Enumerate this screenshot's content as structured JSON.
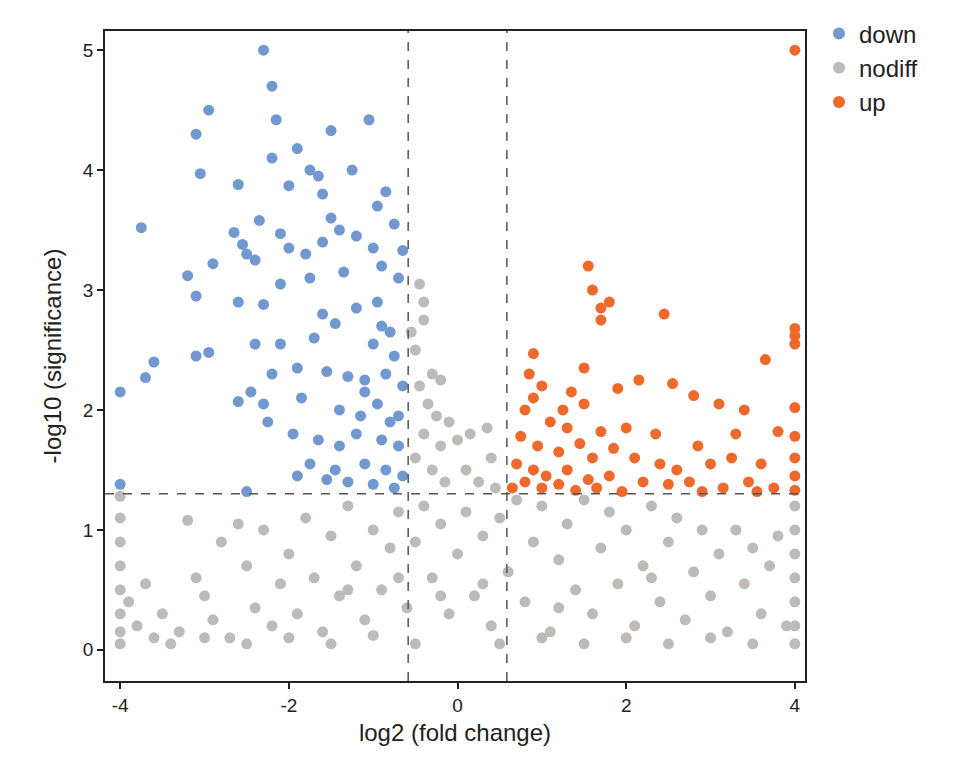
{
  "chart_data": {
    "type": "scatter",
    "x_label": "log2 (fold change)",
    "y_label": "-log10 (significance)",
    "xlim": [
      -4.18,
      4.12
    ],
    "xticks": [
      -4,
      -2,
      0,
      2,
      4
    ],
    "ylim": [
      -0.26,
      5.16
    ],
    "yticks": [
      0,
      1,
      2,
      3,
      4,
      5
    ],
    "grid": false,
    "legend": "right",
    "cutoffs": {
      "x": [
        -0.585,
        0.585
      ],
      "y": 1.301
    },
    "series": [
      {
        "name": "down",
        "color": "#7199cf",
        "marker": "circle",
        "x": [
          -2.3,
          -2.2,
          -2.15,
          -1.05,
          -2.95,
          -3.1,
          -1.5,
          -1.9,
          -2.2,
          -3.05,
          -1.75,
          -1.65,
          -1.25,
          -0.85,
          -2.0,
          -1.6,
          -0.95,
          -2.6,
          -3.75,
          -2.35,
          -2.65,
          -2.55,
          -2.5,
          -2.4,
          -2.1,
          -1.5,
          -1.4,
          -1.2,
          -0.75,
          -2.0,
          -1.8,
          -1.6,
          -1.0,
          -0.65,
          -2.9,
          -3.2,
          -3.1,
          -2.6,
          -2.3,
          -2.1,
          -1.75,
          -1.35,
          -0.9,
          -0.7,
          -1.6,
          -1.45,
          -1.2,
          -0.95,
          -0.8,
          -1.7,
          -1.0,
          -0.75,
          -2.1,
          -2.4,
          -3.1,
          -2.95,
          -3.6,
          -3.7,
          -4.0,
          -2.2,
          -1.9,
          -1.55,
          -1.3,
          -1.1,
          -0.85,
          -0.65,
          -2.45,
          -2.3,
          -1.85,
          -1.4,
          -1.15,
          -0.95,
          -0.7,
          -2.6,
          -2.25,
          -1.95,
          -1.65,
          -1.4,
          -1.2,
          -0.9,
          -0.7,
          -1.75,
          -1.9,
          -1.45,
          -1.1,
          -0.85,
          -0.65,
          -1.3,
          -1.0,
          -0.75,
          -2.5,
          -4.0,
          -1.55,
          -0.9,
          -1.1,
          -0.8
        ],
        "values": [
          5.0,
          4.7,
          4.42,
          4.42,
          4.5,
          4.3,
          4.33,
          4.18,
          4.1,
          3.97,
          4.0,
          3.95,
          4.0,
          3.82,
          3.87,
          3.8,
          3.7,
          3.88,
          3.52,
          3.58,
          3.48,
          3.38,
          3.3,
          3.25,
          3.47,
          3.6,
          3.5,
          3.45,
          3.55,
          3.35,
          3.3,
          3.4,
          3.35,
          3.33,
          3.22,
          3.12,
          2.95,
          2.9,
          2.88,
          3.05,
          3.1,
          3.15,
          3.2,
          3.1,
          2.8,
          2.72,
          2.85,
          2.9,
          2.65,
          2.6,
          2.55,
          2.45,
          2.55,
          2.55,
          2.45,
          2.48,
          2.4,
          2.27,
          2.15,
          2.3,
          2.35,
          2.32,
          2.28,
          2.25,
          2.3,
          2.2,
          2.15,
          2.05,
          2.1,
          2.0,
          1.95,
          2.05,
          1.95,
          2.07,
          1.9,
          1.8,
          1.75,
          1.7,
          1.8,
          1.75,
          1.7,
          1.55,
          1.45,
          1.5,
          1.55,
          1.5,
          1.45,
          1.4,
          1.38,
          1.35,
          1.32,
          1.38,
          1.42,
          2.7,
          2.15,
          1.9
        ]
      },
      {
        "name": "nodiff",
        "color": "#bdbab7",
        "marker": "circle",
        "x": [
          -0.45,
          -0.4,
          -0.4,
          -0.5,
          -0.55,
          -0.3,
          -0.2,
          -0.45,
          -0.35,
          -0.25,
          -0.1,
          -0.4,
          -0.2,
          0.0,
          0.15,
          0.35,
          0.4,
          -0.5,
          -0.3,
          0.1,
          0.25,
          -0.15,
          0.45,
          -4.0,
          -4.0,
          -4.0,
          -4.0,
          -4.0,
          -4.0,
          -4.0,
          -4.0,
          -3.9,
          -3.8,
          -3.7,
          -3.6,
          -3.5,
          -3.3,
          -3.2,
          -3.1,
          -3.0,
          -2.9,
          -2.8,
          -2.7,
          -2.6,
          -2.5,
          -2.4,
          -2.3,
          -2.2,
          -2.1,
          -2.0,
          -1.9,
          -1.8,
          -1.7,
          -1.6,
          -1.5,
          -1.4,
          -1.3,
          -1.2,
          -1.1,
          -1.0,
          -0.9,
          -0.8,
          -0.7,
          -0.6,
          -0.5,
          -0.4,
          -0.3,
          -0.2,
          -0.1,
          0.0,
          0.1,
          0.2,
          0.3,
          0.4,
          0.5,
          0.6,
          0.7,
          0.8,
          0.9,
          1.0,
          1.1,
          1.2,
          1.3,
          1.4,
          1.5,
          1.6,
          1.7,
          1.8,
          1.9,
          2.0,
          2.1,
          2.2,
          2.3,
          2.4,
          2.5,
          2.6,
          2.7,
          2.8,
          2.9,
          3.0,
          3.1,
          3.2,
          3.3,
          3.4,
          3.5,
          3.6,
          3.7,
          3.8,
          3.9,
          4.0,
          4.0,
          4.0,
          4.0,
          4.0,
          4.0,
          4.0,
          -3.4,
          -2.5,
          -1.5,
          -0.5,
          0.5,
          1.5,
          2.5,
          3.5,
          -1.0,
          1.0,
          -2.0,
          2.0,
          3.0,
          -3.0,
          -0.7,
          0.3,
          1.2,
          2.3,
          -1.3,
          -0.2
        ],
        "values": [
          3.05,
          2.9,
          2.75,
          2.5,
          2.65,
          2.3,
          2.25,
          2.2,
          2.05,
          1.95,
          1.9,
          1.8,
          1.7,
          1.75,
          1.8,
          1.85,
          1.6,
          1.6,
          1.5,
          1.5,
          1.4,
          1.4,
          1.35,
          1.28,
          1.1,
          0.9,
          0.7,
          0.5,
          0.3,
          0.15,
          0.05,
          0.4,
          0.2,
          0.55,
          0.1,
          0.3,
          0.15,
          1.08,
          0.6,
          0.45,
          0.25,
          0.9,
          0.1,
          1.05,
          0.7,
          0.35,
          1.0,
          0.2,
          0.55,
          0.8,
          0.3,
          1.1,
          0.6,
          0.15,
          0.95,
          0.45,
          1.2,
          0.7,
          0.25,
          1.0,
          0.5,
          0.85,
          1.15,
          0.35,
          0.9,
          1.2,
          0.6,
          1.05,
          0.3,
          0.8,
          1.15,
          0.45,
          0.95,
          0.2,
          1.1,
          0.65,
          1.25,
          0.4,
          0.9,
          1.2,
          0.15,
          0.75,
          1.05,
          0.5,
          1.25,
          0.3,
          0.85,
          1.15,
          0.55,
          1.0,
          0.2,
          0.7,
          1.2,
          0.4,
          0.9,
          1.1,
          0.25,
          0.65,
          1.0,
          0.45,
          0.8,
          0.15,
          1.0,
          0.55,
          0.85,
          0.3,
          0.7,
          0.95,
          0.2,
          1.2,
          1.0,
          0.8,
          0.6,
          0.4,
          0.2,
          0.05,
          0.05,
          0.05,
          0.05,
          0.05,
          0.05,
          0.05,
          0.05,
          0.05,
          0.12,
          0.1,
          0.1,
          0.1,
          0.1,
          0.1,
          0.6,
          0.55,
          0.35,
          0.6,
          0.5,
          0.45
        ]
      },
      {
        "name": "up",
        "color": "#ee6a2c",
        "marker": "circle",
        "x": [
          4.0,
          1.55,
          1.6,
          1.7,
          1.8,
          1.7,
          2.45,
          4.0,
          4.0,
          4.0,
          3.65,
          0.9,
          0.85,
          1.5,
          2.15,
          1.9,
          2.55,
          1.35,
          1.0,
          0.9,
          1.25,
          1.5,
          2.8,
          3.1,
          3.4,
          4.0,
          0.8,
          1.1,
          1.3,
          1.7,
          2.0,
          2.35,
          2.85,
          3.3,
          3.8,
          4.0,
          0.75,
          0.95,
          1.2,
          1.45,
          1.6,
          1.85,
          2.1,
          2.4,
          2.6,
          3.0,
          3.25,
          3.6,
          4.0,
          0.7,
          0.9,
          1.05,
          1.3,
          1.55,
          1.8,
          2.2,
          2.5,
          2.75,
          3.15,
          3.45,
          3.75,
          4.0,
          0.65,
          0.8,
          1.0,
          1.2,
          1.4,
          1.65,
          1.95,
          2.9,
          3.55,
          4.0
        ],
        "values": [
          5.0,
          3.2,
          3.0,
          2.85,
          2.9,
          2.75,
          2.8,
          2.68,
          2.62,
          2.55,
          2.42,
          2.47,
          2.3,
          2.35,
          2.25,
          2.18,
          2.22,
          2.15,
          2.2,
          2.1,
          2.0,
          2.05,
          2.12,
          2.05,
          2.0,
          2.02,
          2.0,
          1.9,
          1.85,
          1.82,
          1.85,
          1.8,
          1.7,
          1.8,
          1.82,
          1.78,
          1.78,
          1.7,
          1.65,
          1.72,
          1.6,
          1.68,
          1.6,
          1.55,
          1.5,
          1.55,
          1.6,
          1.55,
          1.6,
          1.55,
          1.5,
          1.45,
          1.5,
          1.42,
          1.45,
          1.4,
          1.38,
          1.4,
          1.35,
          1.4,
          1.35,
          1.45,
          1.35,
          1.4,
          1.35,
          1.38,
          1.33,
          1.35,
          1.32,
          1.32,
          1.32,
          1.33
        ]
      }
    ]
  }
}
